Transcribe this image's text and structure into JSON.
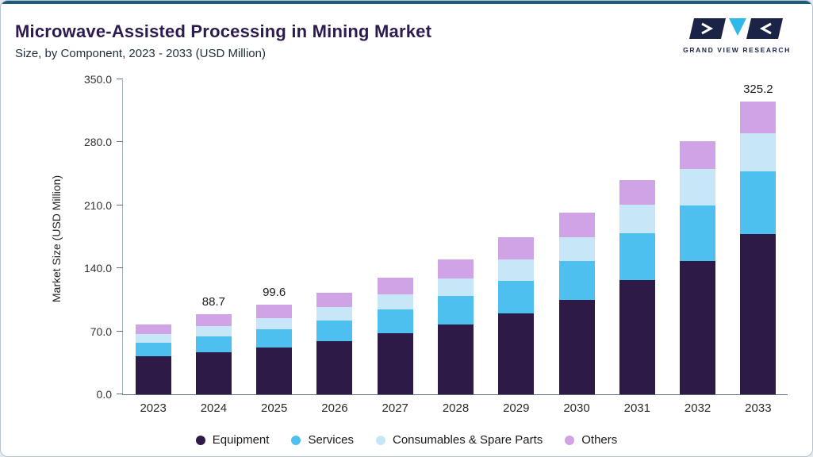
{
  "header": {
    "title": "Microwave-Assisted Processing in Mining Market",
    "subtitle": "Size, by Component, 2023 - 2033 (USD Million)",
    "brand": "GRAND VIEW RESEARCH"
  },
  "colors": {
    "accent_top": "#1d5c79",
    "title_text": "#2d1a4e",
    "logo_navy": "#1b2446",
    "logo_cyan": "#2fb9e9"
  },
  "chart_data": {
    "type": "bar",
    "stacked": true,
    "title": "Microwave-Assisted Processing in Mining Market",
    "subtitle": "Size, by Component, 2023 - 2033 (USD Million)",
    "xlabel": "",
    "ylabel": "Market Size (USD Million)",
    "ylim": [
      0,
      350
    ],
    "ytick_values": [
      0,
      70,
      140,
      210,
      280,
      350
    ],
    "ytick_labels": [
      "0.0",
      "70.0",
      "140.0",
      "210.0",
      "280.0",
      "350.0"
    ],
    "grid": false,
    "legend_position": "bottom",
    "categories": [
      "2023",
      "2024",
      "2025",
      "2026",
      "2027",
      "2028",
      "2029",
      "2030",
      "2031",
      "2032",
      "2033"
    ],
    "series": [
      {
        "name": "Equipment",
        "color": "#2e1a47",
        "values": [
          42,
          47,
          52,
          59,
          68,
          78,
          90,
          105,
          127,
          148,
          178
        ]
      },
      {
        "name": "Services",
        "color": "#4ec0ef",
        "values": [
          15,
          17.5,
          20,
          23,
          26,
          31,
          36,
          43,
          52,
          62,
          70
        ]
      },
      {
        "name": "Consumables & Spare Parts",
        "color": "#c7e7f8",
        "values": [
          10,
          11.5,
          13,
          15,
          17,
          20,
          24,
          27,
          32,
          40,
          42
        ]
      },
      {
        "name": "Others",
        "color": "#cfa3e6",
        "values": [
          11,
          12.7,
          14.6,
          16,
          19,
          21,
          25,
          27,
          27,
          31,
          35.2
        ]
      }
    ],
    "totals": [
      78,
      88.7,
      99.6,
      113,
      130,
      150,
      175,
      202,
      238,
      281,
      325.2
    ],
    "bar_labels": {
      "2024": "88.7",
      "2025": "99.6",
      "2033": "325.2"
    }
  }
}
